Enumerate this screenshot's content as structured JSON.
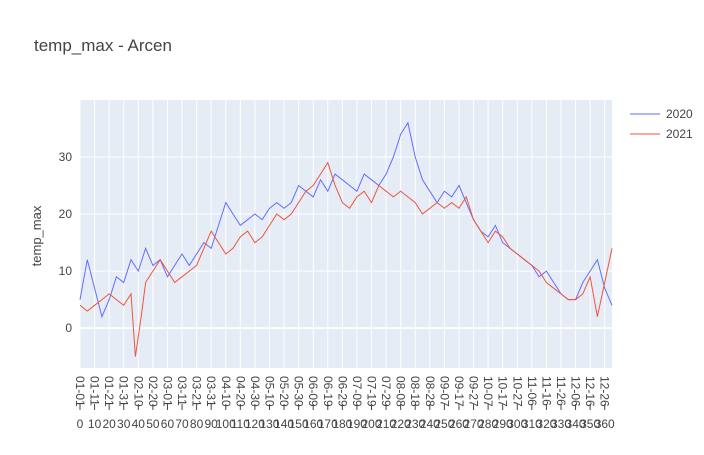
{
  "chart_data": {
    "type": "line",
    "title": "temp_max -  Arcen",
    "xlabel": "",
    "ylabel": "temp_max",
    "xlim": [
      0,
      365
    ],
    "ylim": [
      -7,
      40
    ],
    "y_ticks": [
      0,
      10,
      20,
      30
    ],
    "x_tick_step": 10,
    "grid": true,
    "legend_position": "top-right",
    "colors": {
      "plot_bg": "#e5ecf6",
      "grid": "#ffffff",
      "s2020": "#636efa",
      "s2021": "#ef553b"
    },
    "x_tick_labels": [
      "01-01",
      "01-11",
      "01-21",
      "01-31",
      "02-10",
      "02-20",
      "03-01",
      "03-11",
      "03-21",
      "03-31",
      "04-10",
      "04-20",
      "04-30",
      "05-10",
      "05-20",
      "05-30",
      "06-09",
      "06-19",
      "06-29",
      "07-09",
      "07-19",
      "07-29",
      "08-08",
      "08-18",
      "08-28",
      "09-07",
      "09-17",
      "09-27",
      "10-07",
      "10-17",
      "10-27",
      "11-06",
      "11-16",
      "11-26",
      "12-06",
      "12-16",
      "12-26"
    ],
    "x_tick_sublabels": [
      "0",
      "10",
      "20",
      "30",
      "40",
      "50",
      "60",
      "70",
      "80",
      "90",
      "100",
      "110",
      "120",
      "130",
      "140",
      "150",
      "160",
      "170",
      "180",
      "190",
      "200",
      "210",
      "220",
      "230",
      "240",
      "250",
      "260",
      "270",
      "280",
      "290",
      "300",
      "310",
      "320",
      "330",
      "340",
      "350",
      "360"
    ],
    "series": [
      {
        "name": "2020",
        "points": [
          [
            0,
            5
          ],
          [
            5,
            12
          ],
          [
            10,
            7
          ],
          [
            15,
            2
          ],
          [
            20,
            5
          ],
          [
            25,
            9
          ],
          [
            30,
            8
          ],
          [
            35,
            12
          ],
          [
            40,
            10
          ],
          [
            45,
            14
          ],
          [
            50,
            11
          ],
          [
            55,
            12
          ],
          [
            60,
            9
          ],
          [
            65,
            11
          ],
          [
            70,
            13
          ],
          [
            75,
            11
          ],
          [
            80,
            13
          ],
          [
            85,
            15
          ],
          [
            90,
            14
          ],
          [
            95,
            18
          ],
          [
            100,
            22
          ],
          [
            105,
            20
          ],
          [
            110,
            18
          ],
          [
            115,
            19
          ],
          [
            120,
            20
          ],
          [
            125,
            19
          ],
          [
            130,
            21
          ],
          [
            135,
            22
          ],
          [
            140,
            21
          ],
          [
            145,
            22
          ],
          [
            150,
            25
          ],
          [
            155,
            24
          ],
          [
            160,
            23
          ],
          [
            165,
            26
          ],
          [
            170,
            24
          ],
          [
            175,
            27
          ],
          [
            180,
            26
          ],
          [
            185,
            25
          ],
          [
            190,
            24
          ],
          [
            195,
            27
          ],
          [
            200,
            26
          ],
          [
            205,
            25
          ],
          [
            210,
            27
          ],
          [
            215,
            30
          ],
          [
            220,
            34
          ],
          [
            225,
            36
          ],
          [
            230,
            30
          ],
          [
            235,
            26
          ],
          [
            240,
            24
          ],
          [
            245,
            22
          ],
          [
            250,
            24
          ],
          [
            255,
            23
          ],
          [
            260,
            25
          ],
          [
            265,
            22
          ],
          [
            270,
            19
          ],
          [
            275,
            17
          ],
          [
            280,
            16
          ],
          [
            285,
            18
          ],
          [
            290,
            15
          ],
          [
            295,
            14
          ],
          [
            300,
            13
          ],
          [
            305,
            12
          ],
          [
            310,
            11
          ],
          [
            315,
            9
          ],
          [
            320,
            10
          ],
          [
            325,
            8
          ],
          [
            330,
            6
          ],
          [
            335,
            5
          ],
          [
            340,
            5
          ],
          [
            345,
            8
          ],
          [
            350,
            10
          ],
          [
            355,
            12
          ],
          [
            360,
            7
          ],
          [
            365,
            4
          ]
        ]
      },
      {
        "name": "2021",
        "points": [
          [
            0,
            4
          ],
          [
            5,
            3
          ],
          [
            10,
            4
          ],
          [
            15,
            5
          ],
          [
            20,
            6
          ],
          [
            25,
            5
          ],
          [
            30,
            4
          ],
          [
            35,
            6
          ],
          [
            38,
            -5
          ],
          [
            42,
            2
          ],
          [
            45,
            8
          ],
          [
            50,
            10
          ],
          [
            55,
            12
          ],
          [
            60,
            10
          ],
          [
            65,
            8
          ],
          [
            70,
            9
          ],
          [
            75,
            10
          ],
          [
            80,
            11
          ],
          [
            85,
            14
          ],
          [
            90,
            17
          ],
          [
            95,
            15
          ],
          [
            100,
            13
          ],
          [
            105,
            14
          ],
          [
            110,
            16
          ],
          [
            115,
            17
          ],
          [
            120,
            15
          ],
          [
            125,
            16
          ],
          [
            130,
            18
          ],
          [
            135,
            20
          ],
          [
            140,
            19
          ],
          [
            145,
            20
          ],
          [
            150,
            22
          ],
          [
            155,
            24
          ],
          [
            160,
            25
          ],
          [
            165,
            27
          ],
          [
            170,
            29
          ],
          [
            175,
            25
          ],
          [
            180,
            22
          ],
          [
            185,
            21
          ],
          [
            190,
            23
          ],
          [
            195,
            24
          ],
          [
            200,
            22
          ],
          [
            205,
            25
          ],
          [
            210,
            24
          ],
          [
            215,
            23
          ],
          [
            220,
            24
          ],
          [
            225,
            23
          ],
          [
            230,
            22
          ],
          [
            235,
            20
          ],
          [
            240,
            21
          ],
          [
            245,
            22
          ],
          [
            250,
            21
          ],
          [
            255,
            22
          ],
          [
            260,
            21
          ],
          [
            265,
            23
          ],
          [
            270,
            19
          ],
          [
            275,
            17
          ],
          [
            280,
            15
          ],
          [
            285,
            17
          ],
          [
            290,
            16
          ],
          [
            295,
            14
          ],
          [
            300,
            13
          ],
          [
            305,
            12
          ],
          [
            310,
            11
          ],
          [
            315,
            10
          ],
          [
            320,
            8
          ],
          [
            325,
            7
          ],
          [
            330,
            6
          ],
          [
            335,
            5
          ],
          [
            340,
            5
          ],
          [
            345,
            6
          ],
          [
            350,
            9
          ],
          [
            355,
            2
          ],
          [
            360,
            8
          ],
          [
            365,
            14
          ]
        ]
      }
    ]
  }
}
